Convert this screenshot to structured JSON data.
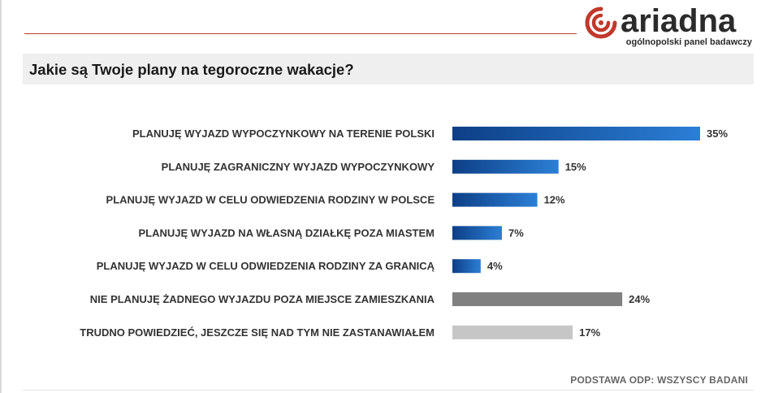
{
  "brand": {
    "name": "ariadna",
    "tagline": "ogólnopolski panel badawczy",
    "color": "#c0392b"
  },
  "question": "Jakie są Twoje plany na tegoroczne wakacje?",
  "footnote": "PODSTAWA ODP: WSZYSCY BADANI",
  "chart_data": {
    "type": "bar",
    "orientation": "horizontal",
    "categories": [
      "PLANUJĘ WYJAZD WYPOCZYNKOWY NA TERENIE POLSKI",
      "PLANUJĘ ZAGRANICZNY WYJAZD WYPOCZYNKOWY",
      "PLANUJĘ WYJAZD W CELU ODWIEDZENIA RODZINY W POLSCE",
      "PLANUJĘ WYJAZD NA WŁASNĄ DZIAŁKĘ POZA MIASTEM",
      "PLANUJĘ WYJAZD W CELU ODWIEDZENIA RODZINY ZA GRANICĄ",
      "NIE PLANUJĘ ŻADNEGO WYJAZDU POZA MIEJSCE ZAMIESZKANIA",
      "TRUDNO POWIEDZIEĆ, JESZCZE SIĘ NAD TYM NIE ZASTANAWIAŁEM"
    ],
    "values": [
      35,
      15,
      12,
      7,
      4,
      24,
      17
    ],
    "value_labels": [
      "35%",
      "15%",
      "12%",
      "7%",
      "4%",
      "24%",
      "17%"
    ],
    "colors": [
      "#0d3f86",
      "#0d3f86",
      "#0d3f86",
      "#0d3f86",
      "#0d3f86",
      "#808080",
      "#c6c6c6"
    ],
    "gradient_end": "#2b7fd6",
    "title": "Jakie są Twoje plany na tegoroczne wakacje?",
    "xlabel": "",
    "ylabel": "",
    "xlim": [
      0,
      35
    ],
    "grid": false,
    "legend": "none"
  }
}
